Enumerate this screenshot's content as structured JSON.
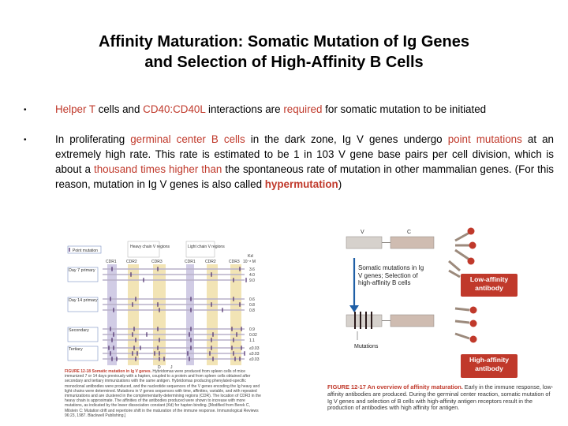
{
  "slide": {
    "title_line1": "Affinity Maturation: Somatic Mutation of Ig Genes",
    "title_line2": "and Selection of High-Affinity B Cells",
    "bullet_glyph": "•",
    "bullet1": {
      "t1": "Helper T",
      "t2": " cells and ",
      "t3": "CD40:CD40L",
      "t4": " interactions are ",
      "t5": "required",
      "t6": " for somatic mutation to be initiated"
    },
    "bullet2": {
      "t1": "In proliferating ",
      "t2": "germinal center B cells",
      "t3": " in the dark zone, Ig V genes undergo ",
      "t4": "point mutations",
      "t5": " at an extremely high rate. This rate is estimated to be 1 in 103 V gene base pairs per cell division, which is about a ",
      "t6": "thousand times higher than",
      "t7": " the spontaneous rate of mutation in other mammalian genes. (For this reason, mutation in Ig V genes is also called ",
      "t8": "hypermutation",
      "t9": ")"
    }
  },
  "figure_left": {
    "legend_point_mutation": "Point mutation",
    "heavy_chain_label": "Heavy chain V regions",
    "light_chain_label": "Light chain V regions",
    "kd_label": "Kd",
    "kd_unit": "10⁻⁸ M",
    "cdr_labels": [
      "CDR1",
      "CDR2",
      "CDR3",
      "CDR1",
      "CDR2",
      "CDR3"
    ],
    "groups": [
      {
        "label": "Day 7 primary",
        "kd": [
          "3.6",
          "4.0",
          "9.0"
        ]
      },
      {
        "label": "Day 14 primary",
        "kd": [
          "0.6",
          "0.8",
          "0.8"
        ]
      },
      {
        "label": "Secondary",
        "kd": [
          "0.9",
          "0.02",
          "1.1"
        ]
      },
      {
        "label": "Tertiary",
        "kd": [
          "≤0.03",
          "≤0.03",
          "≤0.03"
        ]
      }
    ],
    "bottom_labels": [
      "D",
      "J"
    ],
    "caption_title": "FIGURE 12-18 Somatic mutation in Ig V genes.",
    "caption_body": "Hybridomas were produced from spleen cells of mice immunized 7 or 14 days previously with a hapten, coupled to a protein and from spleen cells obtained after secondary and tertiary immunizations with the same antigen. Hybridomas producing phenylated-specific monoclonal antibodies were produced, and the nucleotide sequences of the V genes encoding the Ig heavy and light chains were determined. Mutations in V genes sequences with time, affinities, variable, and with repeated immunizations and are clustered in the complementarity-determining regions (CDR). The location of CDR3 in the heavy chain is approximate. The affinities of the antibodies produced were shown to increase with more mutations, as indicated by the lower dissociation constant (Kd) for hapten binding. [Modified from Berek C, Milstein C: Mutation drift and repertoire shift in the maturation of the immune response. Immunological Reviews 96:23, 1987. Blackwell Publishing.]"
  },
  "figure_right": {
    "v_label": "V",
    "c_label": "C",
    "process_label": "Somatic mutations in Ig V genes; Selection of high-affinity B cells",
    "low_affinity_label": "Low-affinity antibody",
    "mutations_label": "Mutations",
    "high_affinity_label": "High-affinity antibody",
    "caption_title": "FIGURE 12-17 An overview of affinity maturation.",
    "caption_body": " Early in the immune response, low-affinity antibodies are produced. During the germinal center reaction, somatic mutation of Ig V genes and selection of B cells with high-affinity antigen receptors result in the production of antibodies with high affinity for antigen.",
    "colors": {
      "antibody_box": "#c0392b",
      "gene_v": "#d4d0cb",
      "gene_c": "#c9b8ad",
      "arrow": "#1f5fa6"
    }
  }
}
